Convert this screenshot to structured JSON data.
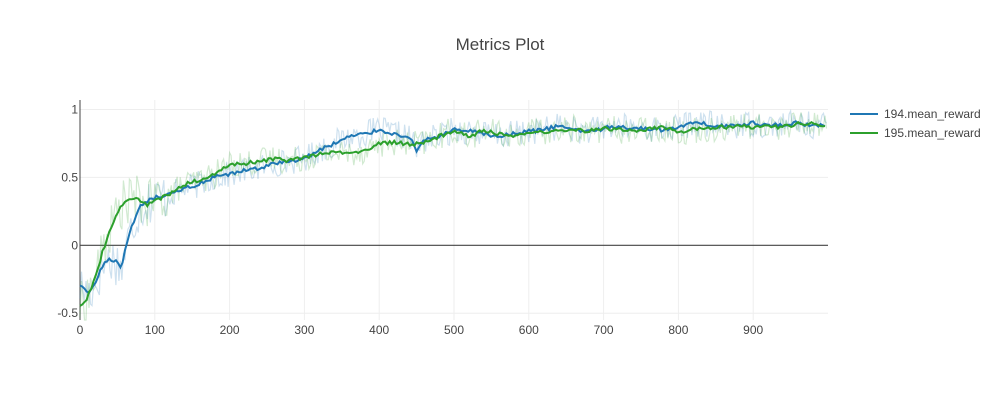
{
  "chart_data": {
    "type": "line",
    "title": "Metrics Plot",
    "xlabel": "",
    "ylabel": "",
    "xlim": [
      0,
      1000
    ],
    "ylim": [
      -0.55,
      1.07
    ],
    "x_ticks": [
      0,
      100,
      200,
      300,
      400,
      500,
      600,
      700,
      800,
      900
    ],
    "y_ticks": [
      -0.5,
      0,
      0.5,
      1
    ],
    "x_tick_labels": [
      "0",
      "100",
      "200",
      "300",
      "400",
      "500",
      "600",
      "700",
      "800",
      "900"
    ],
    "y_tick_labels": [
      "-0.5",
      "0",
      "0.5",
      "1"
    ],
    "grid": true,
    "legend_position": "top-right",
    "series": [
      {
        "name": "194.mean_reward",
        "color": "#1f77b4",
        "x": [
          0,
          10,
          20,
          30,
          40,
          50,
          55,
          60,
          70,
          80,
          90,
          100,
          120,
          140,
          160,
          180,
          200,
          220,
          240,
          260,
          280,
          300,
          320,
          340,
          360,
          380,
          400,
          420,
          440,
          450,
          460,
          480,
          500,
          520,
          540,
          560,
          580,
          600,
          620,
          640,
          660,
          680,
          700,
          720,
          740,
          760,
          780,
          800,
          820,
          840,
          860,
          880,
          900,
          920,
          940,
          960,
          980,
          998
        ],
        "values": [
          -0.3,
          -0.35,
          -0.3,
          -0.15,
          -0.1,
          -0.12,
          -0.18,
          -0.05,
          0.15,
          0.28,
          0.32,
          0.35,
          0.37,
          0.42,
          0.45,
          0.5,
          0.52,
          0.55,
          0.57,
          0.6,
          0.62,
          0.64,
          0.7,
          0.75,
          0.8,
          0.82,
          0.85,
          0.82,
          0.8,
          0.7,
          0.78,
          0.8,
          0.85,
          0.84,
          0.82,
          0.8,
          0.82,
          0.84,
          0.85,
          0.88,
          0.85,
          0.84,
          0.86,
          0.88,
          0.86,
          0.86,
          0.85,
          0.87,
          0.9,
          0.89,
          0.88,
          0.88,
          0.9,
          0.88,
          0.89,
          0.9,
          0.88,
          0.89
        ],
        "raw_variance": 0.1
      },
      {
        "name": "195.mean_reward",
        "color": "#2ca02c",
        "x": [
          0,
          10,
          20,
          30,
          40,
          50,
          60,
          70,
          80,
          90,
          100,
          120,
          140,
          160,
          180,
          200,
          220,
          240,
          260,
          280,
          300,
          320,
          340,
          360,
          380,
          400,
          420,
          440,
          460,
          480,
          500,
          520,
          540,
          560,
          580,
          600,
          620,
          640,
          660,
          680,
          700,
          720,
          740,
          760,
          780,
          800,
          820,
          840,
          860,
          880,
          900,
          920,
          940,
          960,
          980,
          998
        ],
        "values": [
          -0.45,
          -0.38,
          -0.25,
          -0.05,
          0.1,
          0.25,
          0.32,
          0.34,
          0.33,
          0.3,
          0.33,
          0.38,
          0.45,
          0.48,
          0.52,
          0.6,
          0.6,
          0.62,
          0.64,
          0.62,
          0.65,
          0.67,
          0.68,
          0.68,
          0.7,
          0.75,
          0.76,
          0.74,
          0.76,
          0.8,
          0.85,
          0.8,
          0.85,
          0.82,
          0.8,
          0.84,
          0.83,
          0.85,
          0.86,
          0.84,
          0.86,
          0.85,
          0.84,
          0.86,
          0.87,
          0.84,
          0.85,
          0.86,
          0.87,
          0.88,
          0.87,
          0.88,
          0.87,
          0.9,
          0.9,
          0.88
        ],
        "raw_variance": 0.1
      }
    ]
  }
}
